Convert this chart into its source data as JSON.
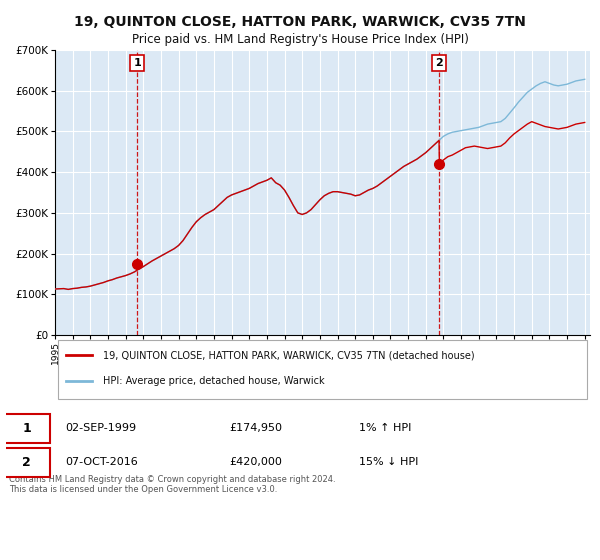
{
  "title": "19, QUINTON CLOSE, HATTON PARK, WARWICK, CV35 7TN",
  "subtitle": "Price paid vs. HM Land Registry's House Price Index (HPI)",
  "legend_line1": "19, QUINTON CLOSE, HATTON PARK, WARWICK, CV35 7TN (detached house)",
  "legend_line2": "HPI: Average price, detached house, Warwick",
  "marker1_date": 1999.67,
  "marker1_value": 174950,
  "marker1_label": "1",
  "marker1_text": "02-SEP-1999",
  "marker1_price": "£174,950",
  "marker1_hpi": "1% ↑ HPI",
  "marker2_date": 2016.77,
  "marker2_value": 420000,
  "marker2_label": "2",
  "marker2_text": "07-OCT-2016",
  "marker2_price": "£420,000",
  "marker2_hpi": "15% ↓ HPI",
  "copyright_text": "Contains HM Land Registry data © Crown copyright and database right 2024.\nThis data is licensed under the Open Government Licence v3.0.",
  "hpi_color": "#7db8d8",
  "price_color": "#cc0000",
  "marker_color": "#cc0000",
  "bg_color": "#dce9f5",
  "grid_color": "#ffffff",
  "ylim": [
    0,
    700000
  ],
  "xlim_start": 1995.0,
  "xlim_end": 2025.3,
  "hpi_data": [
    [
      1995.0,
      113000
    ],
    [
      1995.25,
      113500
    ],
    [
      1995.5,
      114000
    ],
    [
      1995.75,
      112000
    ],
    [
      1996.0,
      114000
    ],
    [
      1996.25,
      115000
    ],
    [
      1996.5,
      117000
    ],
    [
      1996.75,
      118000
    ],
    [
      1997.0,
      120000
    ],
    [
      1997.25,
      123000
    ],
    [
      1997.5,
      126000
    ],
    [
      1997.75,
      129000
    ],
    [
      1998.0,
      133000
    ],
    [
      1998.25,
      136000
    ],
    [
      1998.5,
      140000
    ],
    [
      1998.75,
      143000
    ],
    [
      1999.0,
      146000
    ],
    [
      1999.25,
      150000
    ],
    [
      1999.5,
      155000
    ],
    [
      1999.75,
      162000
    ],
    [
      2000.0,
      168000
    ],
    [
      2000.25,
      175000
    ],
    [
      2000.5,
      182000
    ],
    [
      2000.75,
      188000
    ],
    [
      2001.0,
      194000
    ],
    [
      2001.25,
      200000
    ],
    [
      2001.5,
      206000
    ],
    [
      2001.75,
      212000
    ],
    [
      2002.0,
      220000
    ],
    [
      2002.25,
      232000
    ],
    [
      2002.5,
      248000
    ],
    [
      2002.75,
      264000
    ],
    [
      2003.0,
      278000
    ],
    [
      2003.25,
      288000
    ],
    [
      2003.5,
      296000
    ],
    [
      2003.75,
      302000
    ],
    [
      2004.0,
      308000
    ],
    [
      2004.25,
      318000
    ],
    [
      2004.5,
      328000
    ],
    [
      2004.75,
      338000
    ],
    [
      2005.0,
      344000
    ],
    [
      2005.25,
      348000
    ],
    [
      2005.5,
      352000
    ],
    [
      2005.75,
      356000
    ],
    [
      2006.0,
      360000
    ],
    [
      2006.25,
      366000
    ],
    [
      2006.5,
      372000
    ],
    [
      2006.75,
      376000
    ],
    [
      2007.0,
      380000
    ],
    [
      2007.25,
      386000
    ],
    [
      2007.5,
      374000
    ],
    [
      2007.75,
      368000
    ],
    [
      2008.0,
      356000
    ],
    [
      2008.25,
      338000
    ],
    [
      2008.5,
      318000
    ],
    [
      2008.75,
      300000
    ],
    [
      2009.0,
      296000
    ],
    [
      2009.25,
      300000
    ],
    [
      2009.5,
      308000
    ],
    [
      2009.75,
      320000
    ],
    [
      2010.0,
      332000
    ],
    [
      2010.25,
      342000
    ],
    [
      2010.5,
      348000
    ],
    [
      2010.75,
      352000
    ],
    [
      2011.0,
      352000
    ],
    [
      2011.25,
      350000
    ],
    [
      2011.5,
      348000
    ],
    [
      2011.75,
      346000
    ],
    [
      2012.0,
      342000
    ],
    [
      2012.25,
      344000
    ],
    [
      2012.5,
      350000
    ],
    [
      2012.75,
      356000
    ],
    [
      2013.0,
      360000
    ],
    [
      2013.25,
      366000
    ],
    [
      2013.5,
      374000
    ],
    [
      2013.75,
      382000
    ],
    [
      2014.0,
      390000
    ],
    [
      2014.25,
      398000
    ],
    [
      2014.5,
      406000
    ],
    [
      2014.75,
      414000
    ],
    [
      2015.0,
      420000
    ],
    [
      2015.25,
      426000
    ],
    [
      2015.5,
      432000
    ],
    [
      2015.75,
      440000
    ],
    [
      2016.0,
      448000
    ],
    [
      2016.25,
      458000
    ],
    [
      2016.5,
      468000
    ],
    [
      2016.75,
      478000
    ],
    [
      2017.0,
      488000
    ],
    [
      2017.25,
      494000
    ],
    [
      2017.5,
      498000
    ],
    [
      2017.75,
      500000
    ],
    [
      2018.0,
      502000
    ],
    [
      2018.25,
      504000
    ],
    [
      2018.5,
      506000
    ],
    [
      2018.75,
      508000
    ],
    [
      2019.0,
      510000
    ],
    [
      2019.25,
      514000
    ],
    [
      2019.5,
      518000
    ],
    [
      2019.75,
      520000
    ],
    [
      2020.0,
      522000
    ],
    [
      2020.25,
      524000
    ],
    [
      2020.5,
      532000
    ],
    [
      2020.75,
      545000
    ],
    [
      2021.0,
      558000
    ],
    [
      2021.25,
      572000
    ],
    [
      2021.5,
      584000
    ],
    [
      2021.75,
      596000
    ],
    [
      2022.0,
      604000
    ],
    [
      2022.25,
      612000
    ],
    [
      2022.5,
      618000
    ],
    [
      2022.75,
      622000
    ],
    [
      2023.0,
      618000
    ],
    [
      2023.25,
      614000
    ],
    [
      2023.5,
      612000
    ],
    [
      2023.75,
      614000
    ],
    [
      2024.0,
      616000
    ],
    [
      2024.25,
      620000
    ],
    [
      2024.5,
      624000
    ],
    [
      2024.75,
      626000
    ],
    [
      2025.0,
      628000
    ]
  ],
  "price_data": [
    [
      1995.0,
      113000
    ],
    [
      1995.25,
      113500
    ],
    [
      1995.5,
      114000
    ],
    [
      1995.75,
      112000
    ],
    [
      1996.0,
      114000
    ],
    [
      1996.25,
      115000
    ],
    [
      1996.5,
      117000
    ],
    [
      1996.75,
      118000
    ],
    [
      1997.0,
      120000
    ],
    [
      1997.25,
      123000
    ],
    [
      1997.5,
      126000
    ],
    [
      1997.75,
      129000
    ],
    [
      1998.0,
      133000
    ],
    [
      1998.25,
      136000
    ],
    [
      1998.5,
      140000
    ],
    [
      1998.75,
      143000
    ],
    [
      1999.0,
      146000
    ],
    [
      1999.25,
      150000
    ],
    [
      1999.5,
      155000
    ],
    [
      1999.75,
      162000
    ],
    [
      2000.0,
      168000
    ],
    [
      2000.25,
      175000
    ],
    [
      2000.5,
      182000
    ],
    [
      2000.75,
      188000
    ],
    [
      2001.0,
      194000
    ],
    [
      2001.25,
      200000
    ],
    [
      2001.5,
      206000
    ],
    [
      2001.75,
      212000
    ],
    [
      2002.0,
      220000
    ],
    [
      2002.25,
      232000
    ],
    [
      2002.5,
      248000
    ],
    [
      2002.75,
      264000
    ],
    [
      2003.0,
      278000
    ],
    [
      2003.25,
      288000
    ],
    [
      2003.5,
      296000
    ],
    [
      2003.75,
      302000
    ],
    [
      2004.0,
      308000
    ],
    [
      2004.25,
      318000
    ],
    [
      2004.5,
      328000
    ],
    [
      2004.75,
      338000
    ],
    [
      2005.0,
      344000
    ],
    [
      2005.25,
      348000
    ],
    [
      2005.5,
      352000
    ],
    [
      2005.75,
      356000
    ],
    [
      2006.0,
      360000
    ],
    [
      2006.25,
      366000
    ],
    [
      2006.5,
      372000
    ],
    [
      2006.75,
      376000
    ],
    [
      2007.0,
      380000
    ],
    [
      2007.25,
      386000
    ],
    [
      2007.5,
      374000
    ],
    [
      2007.75,
      368000
    ],
    [
      2008.0,
      356000
    ],
    [
      2008.25,
      338000
    ],
    [
      2008.5,
      318000
    ],
    [
      2008.75,
      300000
    ],
    [
      2009.0,
      296000
    ],
    [
      2009.25,
      300000
    ],
    [
      2009.5,
      308000
    ],
    [
      2009.75,
      320000
    ],
    [
      2010.0,
      332000
    ],
    [
      2010.25,
      342000
    ],
    [
      2010.5,
      348000
    ],
    [
      2010.75,
      352000
    ],
    [
      2011.0,
      352000
    ],
    [
      2011.25,
      350000
    ],
    [
      2011.5,
      348000
    ],
    [
      2011.75,
      346000
    ],
    [
      2012.0,
      342000
    ],
    [
      2012.25,
      344000
    ],
    [
      2012.5,
      350000
    ],
    [
      2012.75,
      356000
    ],
    [
      2013.0,
      360000
    ],
    [
      2013.25,
      366000
    ],
    [
      2013.5,
      374000
    ],
    [
      2013.75,
      382000
    ],
    [
      2014.0,
      390000
    ],
    [
      2014.25,
      398000
    ],
    [
      2014.5,
      406000
    ],
    [
      2014.75,
      414000
    ],
    [
      2015.0,
      420000
    ],
    [
      2015.25,
      426000
    ],
    [
      2015.5,
      432000
    ],
    [
      2015.75,
      440000
    ],
    [
      2016.0,
      448000
    ],
    [
      2016.25,
      458000
    ],
    [
      2016.5,
      468000
    ],
    [
      2016.75,
      478000
    ],
    [
      2016.77,
      420000
    ],
    [
      2017.0,
      430000
    ],
    [
      2017.25,
      438000
    ],
    [
      2017.5,
      442000
    ],
    [
      2017.75,
      448000
    ],
    [
      2018.0,
      454000
    ],
    [
      2018.25,
      460000
    ],
    [
      2018.5,
      462000
    ],
    [
      2018.75,
      464000
    ],
    [
      2019.0,
      462000
    ],
    [
      2019.25,
      460000
    ],
    [
      2019.5,
      458000
    ],
    [
      2019.75,
      460000
    ],
    [
      2020.0,
      462000
    ],
    [
      2020.25,
      464000
    ],
    [
      2020.5,
      472000
    ],
    [
      2020.75,
      484000
    ],
    [
      2021.0,
      494000
    ],
    [
      2021.25,
      502000
    ],
    [
      2021.5,
      510000
    ],
    [
      2021.75,
      518000
    ],
    [
      2022.0,
      524000
    ],
    [
      2022.25,
      520000
    ],
    [
      2022.5,
      516000
    ],
    [
      2022.75,
      512000
    ],
    [
      2023.0,
      510000
    ],
    [
      2023.25,
      508000
    ],
    [
      2023.5,
      506000
    ],
    [
      2023.75,
      508000
    ],
    [
      2024.0,
      510000
    ],
    [
      2024.25,
      514000
    ],
    [
      2024.5,
      518000
    ],
    [
      2024.75,
      520000
    ],
    [
      2025.0,
      522000
    ]
  ]
}
